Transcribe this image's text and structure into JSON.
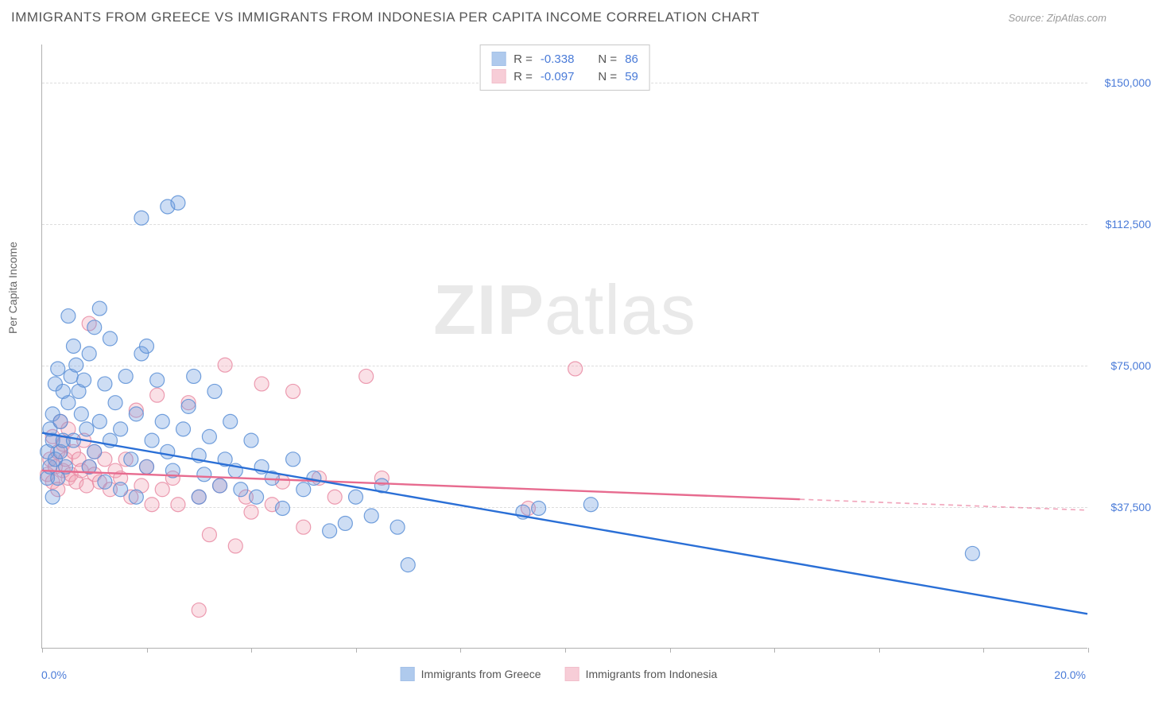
{
  "header": {
    "title": "IMMIGRANTS FROM GREECE VS IMMIGRANTS FROM INDONESIA PER CAPITA INCOME CORRELATION CHART",
    "source_prefix": "Source: ",
    "source_name": "ZipAtlas.com"
  },
  "watermark": {
    "zip": "ZIP",
    "atlas": "atlas"
  },
  "chart": {
    "type": "scatter",
    "ylabel": "Per Capita Income",
    "xlim": [
      0,
      20
    ],
    "ylim": [
      0,
      160000
    ],
    "x_tick_positions": [
      0,
      2,
      4,
      6,
      8,
      10,
      12,
      14,
      16,
      18,
      20
    ],
    "x_min_label": "0.0%",
    "x_max_label": "20.0%",
    "y_ticks": [
      {
        "value": 37500,
        "label": "$37,500"
      },
      {
        "value": 75000,
        "label": "$75,000"
      },
      {
        "value": 112500,
        "label": "$112,500"
      },
      {
        "value": 150000,
        "label": "$150,000"
      }
    ],
    "background_color": "#ffffff",
    "grid_color": "#dddddd",
    "axis_color": "#b0b0b0",
    "tick_label_color": "#4a7bd8",
    "marker_radius": 9,
    "marker_fill_opacity": 0.35,
    "marker_stroke_opacity": 0.85,
    "marker_stroke_width": 1.2,
    "trend_line_width": 2.4,
    "trend_dash_pattern": "6,5",
    "legend_top": {
      "rows": [
        {
          "swatch": "greece",
          "r_label": "R =",
          "r": "-0.338",
          "n_label": "N =",
          "n": "86"
        },
        {
          "swatch": "indonesia",
          "r_label": "R =",
          "r": "-0.097",
          "n_label": "N =",
          "n": "59"
        }
      ]
    },
    "legend_bottom": {
      "items": [
        {
          "swatch": "greece",
          "label": "Immigrants from Greece"
        },
        {
          "swatch": "indonesia",
          "label": "Immigrants from Indonesia"
        }
      ]
    },
    "series": {
      "greece": {
        "label": "Immigrants from Greece",
        "color": "#6f9fe0",
        "stroke": "#5a8fd6",
        "line_color": "#2a6fd6",
        "trend": {
          "x1": 0,
          "y1": 57000,
          "x2": 20,
          "y2": 9000,
          "solid_until_x": 20
        },
        "points": [
          [
            0.1,
            45000
          ],
          [
            0.1,
            52000
          ],
          [
            0.15,
            58000
          ],
          [
            0.15,
            48000
          ],
          [
            0.2,
            55000
          ],
          [
            0.2,
            62000
          ],
          [
            0.25,
            50000
          ],
          [
            0.25,
            70000
          ],
          [
            0.3,
            74000
          ],
          [
            0.3,
            45000
          ],
          [
            0.35,
            60000
          ],
          [
            0.35,
            52000
          ],
          [
            0.4,
            68000
          ],
          [
            0.4,
            55000
          ],
          [
            0.45,
            48000
          ],
          [
            0.5,
            65000
          ],
          [
            0.5,
            88000
          ],
          [
            0.55,
            72000
          ],
          [
            0.6,
            80000
          ],
          [
            0.6,
            55000
          ],
          [
            0.65,
            75000
          ],
          [
            0.7,
            68000
          ],
          [
            0.75,
            62000
          ],
          [
            0.8,
            71000
          ],
          [
            0.85,
            58000
          ],
          [
            0.9,
            78000
          ],
          [
            0.9,
            48000
          ],
          [
            1.0,
            85000
          ],
          [
            1.0,
            52000
          ],
          [
            1.1,
            90000
          ],
          [
            1.1,
            60000
          ],
          [
            1.2,
            70000
          ],
          [
            1.2,
            44000
          ],
          [
            1.3,
            82000
          ],
          [
            1.3,
            55000
          ],
          [
            1.4,
            65000
          ],
          [
            1.5,
            58000
          ],
          [
            1.5,
            42000
          ],
          [
            1.6,
            72000
          ],
          [
            1.7,
            50000
          ],
          [
            1.8,
            62000
          ],
          [
            1.8,
            40000
          ],
          [
            1.9,
            78000
          ],
          [
            2.0,
            80000
          ],
          [
            2.0,
            48000
          ],
          [
            2.1,
            55000
          ],
          [
            2.2,
            71000
          ],
          [
            2.3,
            60000
          ],
          [
            2.4,
            52000
          ],
          [
            2.4,
            117000
          ],
          [
            2.5,
            47000
          ],
          [
            2.6,
            118000
          ],
          [
            2.7,
            58000
          ],
          [
            2.8,
            64000
          ],
          [
            2.9,
            72000
          ],
          [
            3.0,
            51000
          ],
          [
            3.0,
            40000
          ],
          [
            3.1,
            46000
          ],
          [
            3.2,
            56000
          ],
          [
            3.3,
            68000
          ],
          [
            3.4,
            43000
          ],
          [
            3.5,
            50000
          ],
          [
            3.6,
            60000
          ],
          [
            3.7,
            47000
          ],
          [
            3.8,
            42000
          ],
          [
            4.0,
            55000
          ],
          [
            4.1,
            40000
          ],
          [
            4.2,
            48000
          ],
          [
            4.4,
            45000
          ],
          [
            4.6,
            37000
          ],
          [
            4.8,
            50000
          ],
          [
            5.0,
            42000
          ],
          [
            5.2,
            45000
          ],
          [
            5.5,
            31000
          ],
          [
            5.8,
            33000
          ],
          [
            6.0,
            40000
          ],
          [
            6.3,
            35000
          ],
          [
            6.5,
            43000
          ],
          [
            6.8,
            32000
          ],
          [
            7.0,
            22000
          ],
          [
            9.2,
            36000
          ],
          [
            9.5,
            37000
          ],
          [
            10.5,
            38000
          ],
          [
            17.8,
            25000
          ],
          [
            1.9,
            114000
          ],
          [
            0.2,
            40000
          ]
        ]
      },
      "indonesia": {
        "label": "Immigrants from Indonesia",
        "color": "#f2a5b8",
        "stroke": "#e98ba3",
        "line_color": "#e76b8f",
        "trend": {
          "x1": 0,
          "y1": 47000,
          "x2": 20,
          "y2": 36500,
          "solid_until_x": 14.5
        },
        "points": [
          [
            0.1,
            46000
          ],
          [
            0.15,
            50000
          ],
          [
            0.2,
            44000
          ],
          [
            0.2,
            56000
          ],
          [
            0.25,
            48000
          ],
          [
            0.3,
            52000
          ],
          [
            0.3,
            42000
          ],
          [
            0.35,
            60000
          ],
          [
            0.4,
            47000
          ],
          [
            0.4,
            54000
          ],
          [
            0.45,
            50000
          ],
          [
            0.5,
            45000
          ],
          [
            0.5,
            58000
          ],
          [
            0.55,
            46000
          ],
          [
            0.6,
            52000
          ],
          [
            0.65,
            44000
          ],
          [
            0.7,
            50000
          ],
          [
            0.75,
            47000
          ],
          [
            0.8,
            55000
          ],
          [
            0.85,
            43000
          ],
          [
            0.9,
            48000
          ],
          [
            0.9,
            86000
          ],
          [
            1.0,
            46000
          ],
          [
            1.0,
            52000
          ],
          [
            1.1,
            44000
          ],
          [
            1.2,
            50000
          ],
          [
            1.3,
            42000
          ],
          [
            1.4,
            47000
          ],
          [
            1.5,
            45000
          ],
          [
            1.6,
            50000
          ],
          [
            1.7,
            40000
          ],
          [
            1.8,
            63000
          ],
          [
            1.9,
            43000
          ],
          [
            2.0,
            48000
          ],
          [
            2.1,
            38000
          ],
          [
            2.2,
            67000
          ],
          [
            2.3,
            42000
          ],
          [
            2.5,
            45000
          ],
          [
            2.6,
            38000
          ],
          [
            2.8,
            65000
          ],
          [
            3.0,
            40000
          ],
          [
            3.2,
            30000
          ],
          [
            3.4,
            43000
          ],
          [
            3.5,
            75000
          ],
          [
            3.7,
            27000
          ],
          [
            3.9,
            40000
          ],
          [
            4.0,
            36000
          ],
          [
            4.2,
            70000
          ],
          [
            4.4,
            38000
          ],
          [
            4.6,
            44000
          ],
          [
            4.8,
            68000
          ],
          [
            5.0,
            32000
          ],
          [
            5.3,
            45000
          ],
          [
            5.6,
            40000
          ],
          [
            6.2,
            72000
          ],
          [
            6.5,
            45000
          ],
          [
            3.0,
            10000
          ],
          [
            9.3,
            37000
          ],
          [
            10.2,
            74000
          ]
        ]
      }
    }
  }
}
